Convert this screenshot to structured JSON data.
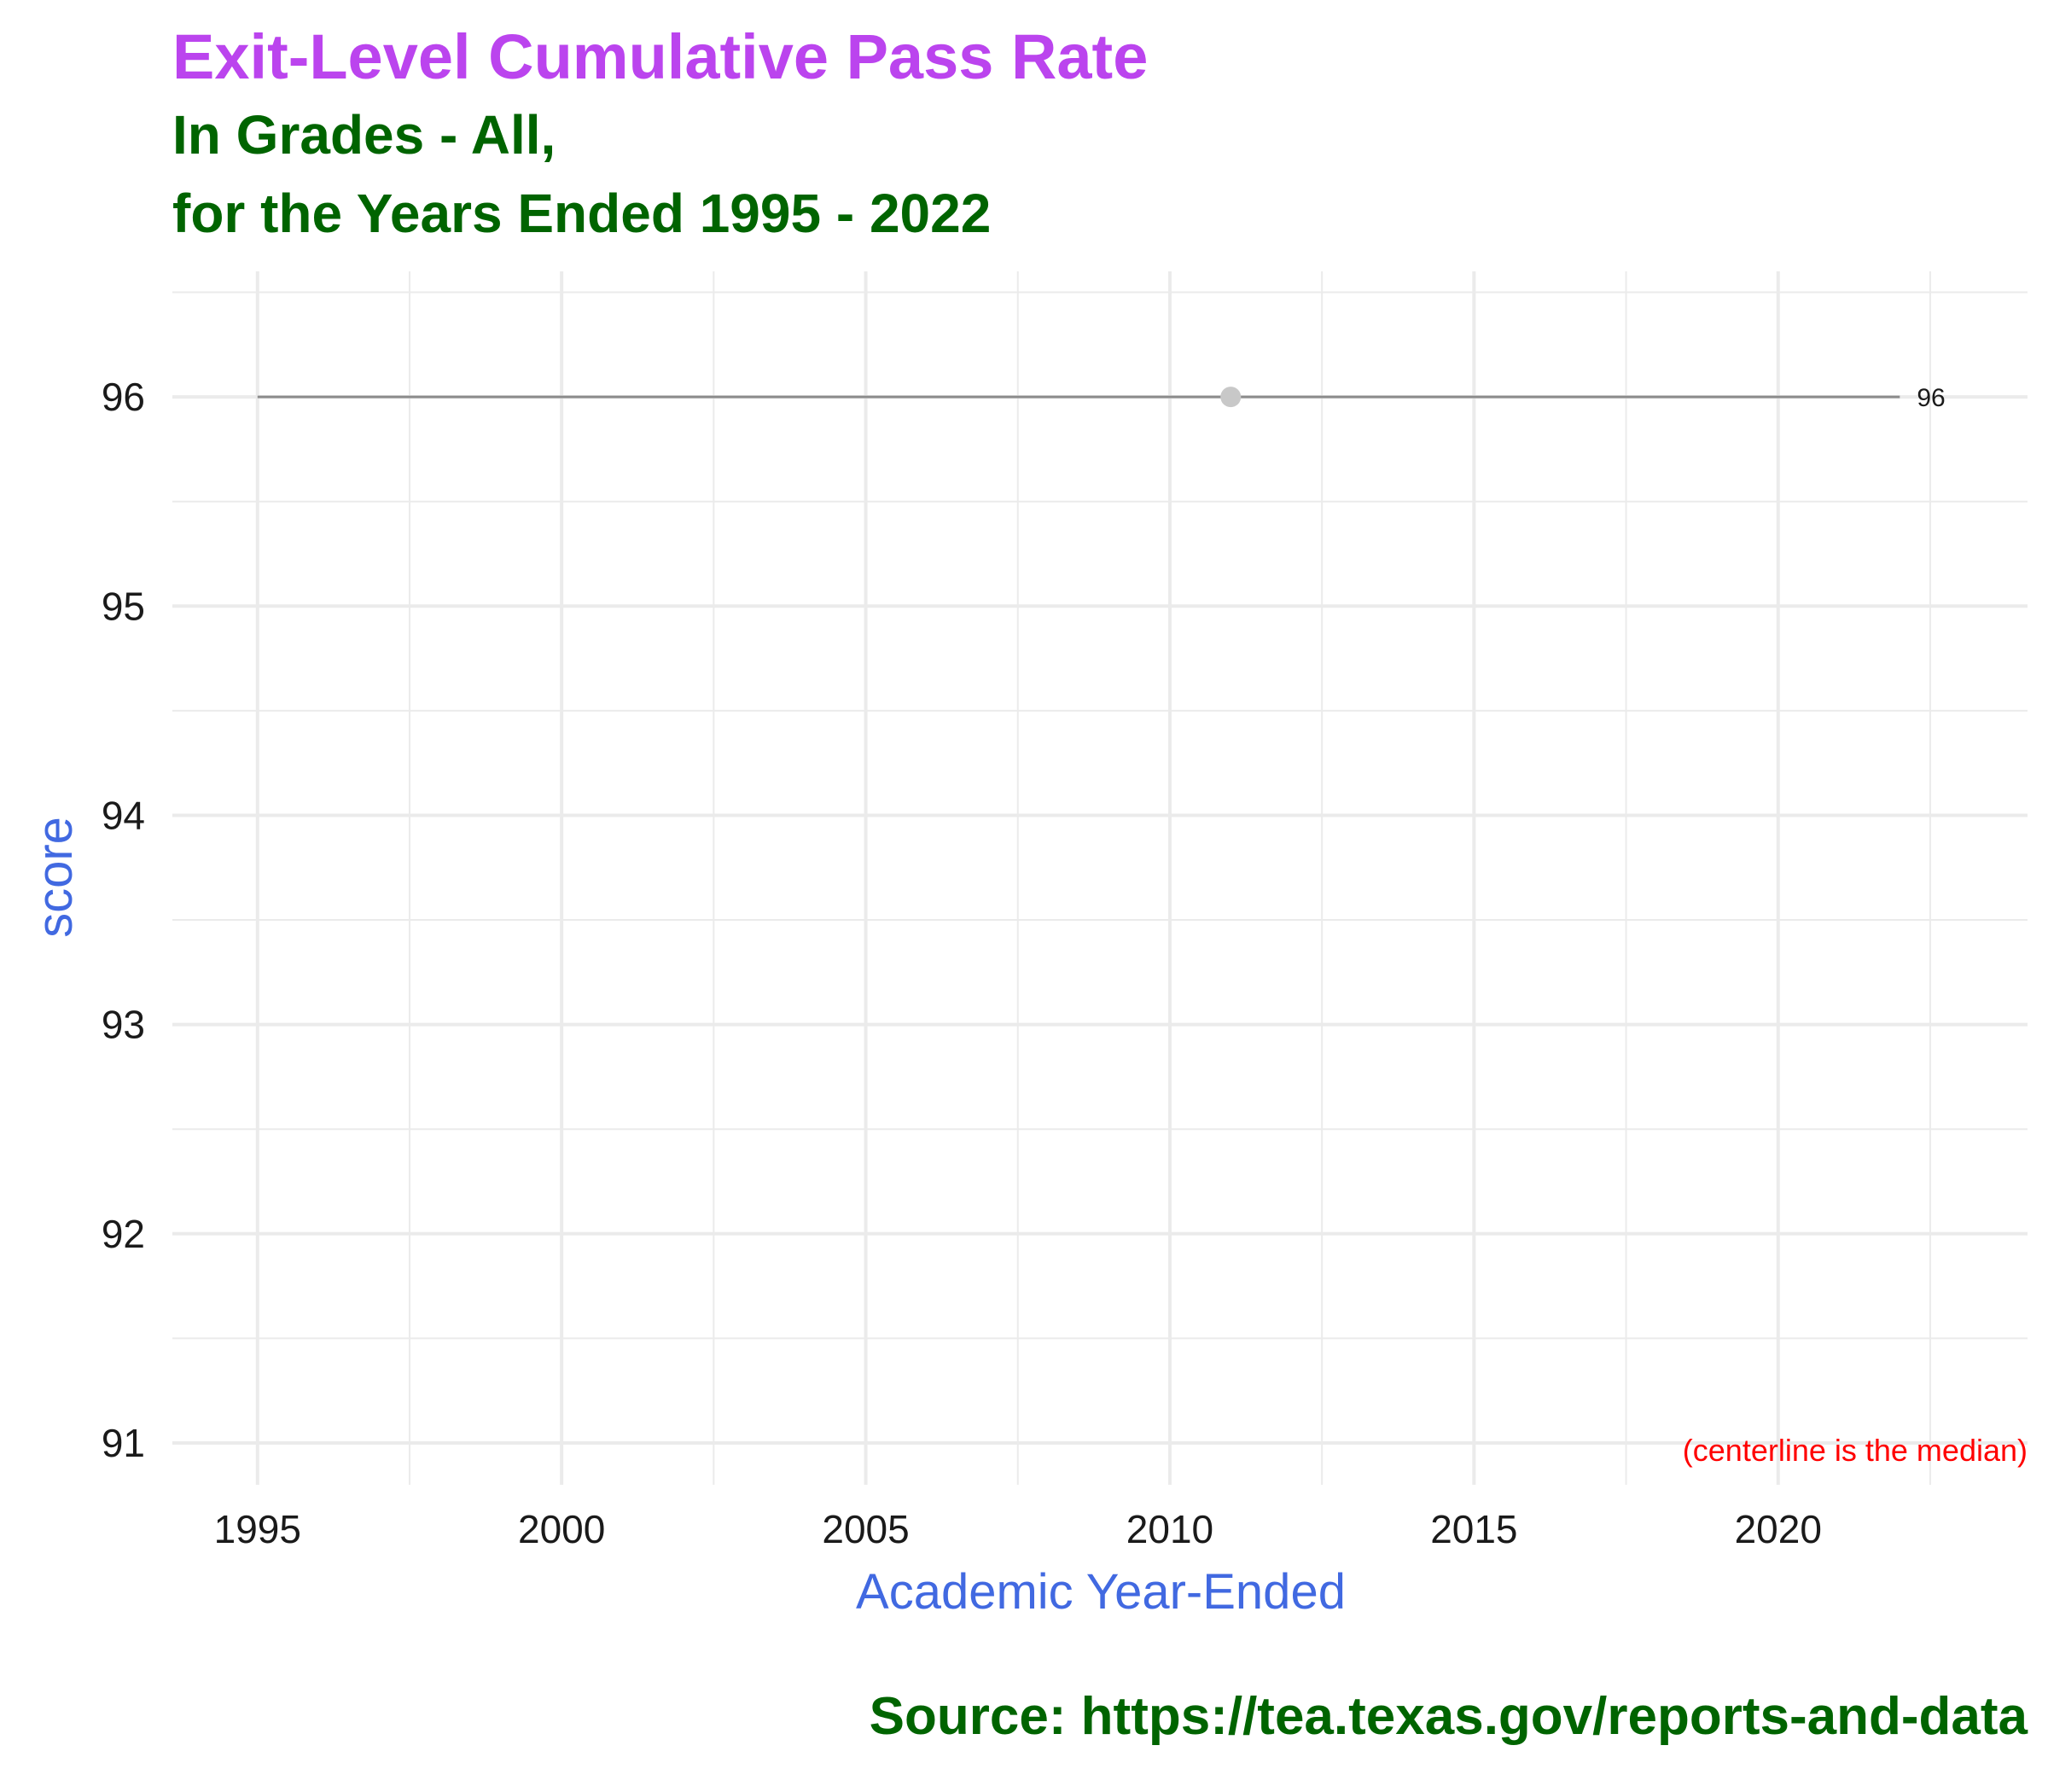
{
  "chart_data": {
    "type": "line",
    "title": "Exit-Level Cumulative Pass Rate",
    "subtitle_lines": [
      "In Grades - All,",
      "for the Years Ended 1995 - 2022"
    ],
    "xlabel": "Academic Year-Ended",
    "ylabel": "score",
    "caption": "Source:  https://tea.texas.gov/reports-and-data",
    "annotation": "(centerline is the median)",
    "xlim": [
      1993.6,
      2024.1
    ],
    "ylim": [
      90.8,
      96.6
    ],
    "x_ticks": [
      1995,
      2000,
      2005,
      2010,
      2015,
      2020
    ],
    "y_ticks": [
      91,
      92,
      93,
      94,
      95,
      96
    ],
    "grid": true,
    "median": 96,
    "points": [
      {
        "x": 2011,
        "y": 96
      }
    ],
    "end_label": {
      "x": 2022,
      "text": "96"
    },
    "colors": {
      "title": "#bb44ee",
      "subtitle": "#006400",
      "axis_title": "#4169e1",
      "annotation": "#ff0000",
      "median_line": "#8c8c8c",
      "point": "#c8c8c8",
      "grid": "#ebebeb"
    }
  }
}
